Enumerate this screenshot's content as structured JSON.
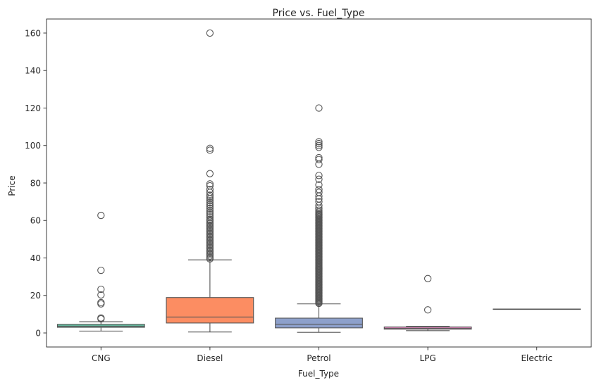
{
  "chart_data": {
    "type": "box",
    "title": "Price vs. Fuel_Type",
    "xlabel": "Fuel_Type",
    "ylabel": "Price",
    "ylim": [
      -7.5,
      167.5
    ],
    "yticks": [
      0,
      20,
      40,
      60,
      80,
      100,
      120,
      140,
      160
    ],
    "grid": false,
    "legend": "none",
    "categories": [
      "CNG",
      "Diesel",
      "Petrol",
      "LPG",
      "Electric"
    ],
    "colors": [
      "#66c2a5",
      "#fc8d62",
      "#8da0cb",
      "#e78ac3",
      "#a6d854"
    ],
    "line_color": "#555555",
    "boxes": [
      {
        "category": "CNG",
        "min": 1.0,
        "q1": 3.0,
        "median": 3.6,
        "q3": 4.6,
        "max": 6.0,
        "outliers": [
          7.5,
          8.0,
          15.5,
          16.2,
          20.3,
          23.3,
          33.4,
          62.7
        ]
      },
      {
        "category": "Diesel",
        "min": 0.5,
        "q1": 5.3,
        "median": 8.5,
        "q3": 18.9,
        "max": 39.0,
        "outliers": [
          39.5,
          40.2,
          41,
          41.8,
          42.5,
          43.3,
          44,
          44.8,
          45.5,
          46.3,
          47,
          47.8,
          48.5,
          49.3,
          50,
          50.8,
          51.5,
          52.3,
          53,
          53.8,
          54.5,
          55.3,
          56,
          56.8,
          57.5,
          58.3,
          59,
          59.8,
          60.5,
          61.5,
          62.5,
          63.5,
          64.5,
          65.5,
          66.5,
          67.5,
          68.5,
          69.5,
          70.5,
          71.5,
          72.5,
          73.5,
          75,
          76.5,
          78.5,
          79.5,
          85,
          97.5,
          98.5,
          160
        ]
      },
      {
        "category": "Petrol",
        "min": 0.3,
        "q1": 2.7,
        "median": 4.7,
        "q3": 7.9,
        "max": 15.5,
        "outliers": [
          15.8,
          16.3,
          16.8,
          17.3,
          17.8,
          18.3,
          18.8,
          19.3,
          19.8,
          20.3,
          20.8,
          21.3,
          21.8,
          22.3,
          22.8,
          23.3,
          23.8,
          24.3,
          24.8,
          25.3,
          25.8,
          26.3,
          26.8,
          27.3,
          27.8,
          28.3,
          28.8,
          29.3,
          29.8,
          30.3,
          30.8,
          31.3,
          31.8,
          32.3,
          32.8,
          33.3,
          33.8,
          34.3,
          34.8,
          35.3,
          35.8,
          36.3,
          36.8,
          37.3,
          37.8,
          38.3,
          38.8,
          39.3,
          39.8,
          40.3,
          40.8,
          41.3,
          41.8,
          42.3,
          42.8,
          43.3,
          43.8,
          44.3,
          44.8,
          45.3,
          45.8,
          46.3,
          46.8,
          47.3,
          47.8,
          48.3,
          48.8,
          49.3,
          49.8,
          50.3,
          50.8,
          51.3,
          51.8,
          52.3,
          52.8,
          53.3,
          53.8,
          54.3,
          54.8,
          55.3,
          55.8,
          56.3,
          56.8,
          57.3,
          57.8,
          58.3,
          58.8,
          59.3,
          59.8,
          60.3,
          60.8,
          61.3,
          61.8,
          62.3,
          62.8,
          63.3,
          63.8,
          64.5,
          65.5,
          66.5,
          68,
          70,
          71.5,
          73,
          75,
          76.5,
          79,
          82,
          84,
          90,
          92.5,
          93.5,
          99,
          100,
          101,
          102,
          120
        ]
      },
      {
        "category": "LPG",
        "min": 1.2,
        "q1": 2.0,
        "median": 2.5,
        "q3": 3.2,
        "max": 3.5,
        "outliers": [
          12.3,
          29.0
        ]
      },
      {
        "category": "Electric",
        "min": 12.75,
        "q1": 12.75,
        "median": 12.75,
        "q3": 12.75,
        "max": 12.75,
        "outliers": []
      }
    ]
  }
}
